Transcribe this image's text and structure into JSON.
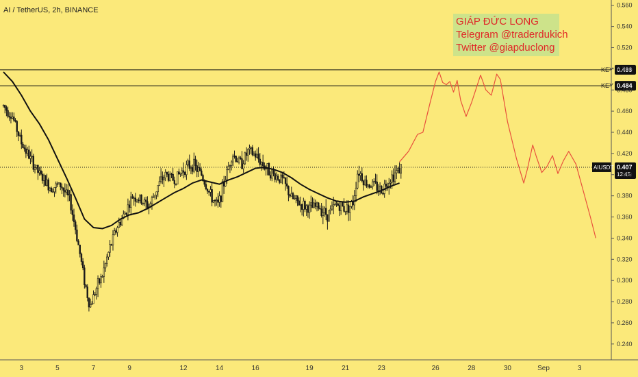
{
  "title": "AI / TetherUS, 2h, BINANCE",
  "watermark": {
    "line1": "GIÁP ĐỨC LONG",
    "line2": "Telegram @traderdukich",
    "line3": "Twitter @giapduclong"
  },
  "colors": {
    "background": "#fbe97a",
    "candle": "#1a1a1a",
    "ma": "#111111",
    "projection": "#e8503c",
    "watermark_text": "#e02828",
    "watermark_bg": "#cde38a",
    "badge": "#111111"
  },
  "chart_data": {
    "type": "line",
    "title": "AI / TetherUS, 2h, BINANCE",
    "xlabel": "",
    "ylabel": "",
    "x_ticks": [
      "3",
      "5",
      "7",
      "9",
      "12",
      "14",
      "16",
      "19",
      "21",
      "23",
      "26",
      "28",
      "30",
      "Sep",
      "3"
    ],
    "y_ticks": [
      "0.240",
      "0.260",
      "0.280",
      "0.300",
      "0.320",
      "0.340",
      "0.360",
      "0.380",
      "0.400",
      "0.420",
      "0.440",
      "0.460",
      "0.480",
      "0.500",
      "0.520",
      "0.540",
      "0.560"
    ],
    "ylim": [
      0.225,
      0.565
    ],
    "grid": false,
    "price_series": [
      {
        "d": 0.0,
        "v": 0.465
      },
      {
        "d": 0.5,
        "v": 0.455
      },
      {
        "d": 1.0,
        "v": 0.43
      },
      {
        "d": 1.5,
        "v": 0.415
      },
      {
        "d": 2.0,
        "v": 0.4
      },
      {
        "d": 2.6,
        "v": 0.388
      },
      {
        "d": 3.2,
        "v": 0.39
      },
      {
        "d": 3.7,
        "v": 0.375
      },
      {
        "d": 4.1,
        "v": 0.34
      },
      {
        "d": 4.5,
        "v": 0.3
      },
      {
        "d": 4.8,
        "v": 0.275
      },
      {
        "d": 5.1,
        "v": 0.29
      },
      {
        "d": 5.5,
        "v": 0.305
      },
      {
        "d": 5.9,
        "v": 0.33
      },
      {
        "d": 6.3,
        "v": 0.35
      },
      {
        "d": 6.7,
        "v": 0.362
      },
      {
        "d": 7.2,
        "v": 0.38
      },
      {
        "d": 7.7,
        "v": 0.375
      },
      {
        "d": 8.1,
        "v": 0.37
      },
      {
        "d": 8.6,
        "v": 0.39
      },
      {
        "d": 9.0,
        "v": 0.4
      },
      {
        "d": 9.5,
        "v": 0.395
      },
      {
        "d": 10.0,
        "v": 0.405
      },
      {
        "d": 10.5,
        "v": 0.41
      },
      {
        "d": 11.0,
        "v": 0.4
      },
      {
        "d": 11.5,
        "v": 0.38
      },
      {
        "d": 11.9,
        "v": 0.37
      },
      {
        "d": 12.3,
        "v": 0.395
      },
      {
        "d": 12.7,
        "v": 0.42
      },
      {
        "d": 13.2,
        "v": 0.41
      },
      {
        "d": 13.6,
        "v": 0.422
      },
      {
        "d": 14.0,
        "v": 0.418
      },
      {
        "d": 14.5,
        "v": 0.408
      },
      {
        "d": 15.0,
        "v": 0.4
      },
      {
        "d": 15.5,
        "v": 0.395
      },
      {
        "d": 16.0,
        "v": 0.378
      },
      {
        "d": 16.5,
        "v": 0.372
      },
      {
        "d": 17.0,
        "v": 0.368
      },
      {
        "d": 17.5,
        "v": 0.37
      },
      {
        "d": 18.0,
        "v": 0.362
      },
      {
        "d": 18.5,
        "v": 0.372
      },
      {
        "d": 19.0,
        "v": 0.368
      },
      {
        "d": 19.4,
        "v": 0.372
      },
      {
        "d": 19.7,
        "v": 0.405
      },
      {
        "d": 20.1,
        "v": 0.392
      },
      {
        "d": 20.6,
        "v": 0.39
      },
      {
        "d": 21.0,
        "v": 0.385
      },
      {
        "d": 21.4,
        "v": 0.395
      },
      {
        "d": 21.8,
        "v": 0.402
      },
      {
        "d": 22.1,
        "v": 0.407
      }
    ],
    "series": [
      {
        "name": "",
        "points": [
          {
            "d": 0.0,
            "v": 0.497
          },
          {
            "d": 0.5,
            "v": 0.488
          },
          {
            "d": 1.0,
            "v": 0.475
          },
          {
            "d": 1.5,
            "v": 0.46
          },
          {
            "d": 2.0,
            "v": 0.448
          },
          {
            "d": 2.5,
            "v": 0.433
          },
          {
            "d": 3.0,
            "v": 0.415
          },
          {
            "d": 3.5,
            "v": 0.397
          },
          {
            "d": 4.0,
            "v": 0.378
          },
          {
            "d": 4.5,
            "v": 0.358
          },
          {
            "d": 5.0,
            "v": 0.35
          },
          {
            "d": 5.5,
            "v": 0.349
          },
          {
            "d": 6.0,
            "v": 0.352
          },
          {
            "d": 6.5,
            "v": 0.358
          },
          {
            "d": 7.0,
            "v": 0.362
          },
          {
            "d": 7.5,
            "v": 0.364
          },
          {
            "d": 8.0,
            "v": 0.368
          },
          {
            "d": 8.5,
            "v": 0.373
          },
          {
            "d": 9.0,
            "v": 0.378
          },
          {
            "d": 9.5,
            "v": 0.383
          },
          {
            "d": 10.0,
            "v": 0.387
          },
          {
            "d": 10.5,
            "v": 0.392
          },
          {
            "d": 11.0,
            "v": 0.395
          },
          {
            "d": 11.5,
            "v": 0.393
          },
          {
            "d": 12.0,
            "v": 0.391
          },
          {
            "d": 12.5,
            "v": 0.395
          },
          {
            "d": 13.0,
            "v": 0.398
          },
          {
            "d": 13.5,
            "v": 0.402
          },
          {
            "d": 14.0,
            "v": 0.406
          },
          {
            "d": 14.5,
            "v": 0.407
          },
          {
            "d": 15.0,
            "v": 0.405
          },
          {
            "d": 15.5,
            "v": 0.402
          },
          {
            "d": 16.0,
            "v": 0.397
          },
          {
            "d": 16.5,
            "v": 0.391
          },
          {
            "d": 17.0,
            "v": 0.386
          },
          {
            "d": 17.5,
            "v": 0.382
          },
          {
            "d": 18.0,
            "v": 0.378
          },
          {
            "d": 18.5,
            "v": 0.375
          },
          {
            "d": 19.0,
            "v": 0.374
          },
          {
            "d": 19.5,
            "v": 0.375
          },
          {
            "d": 20.0,
            "v": 0.379
          },
          {
            "d": 20.5,
            "v": 0.382
          },
          {
            "d": 21.0,
            "v": 0.385
          },
          {
            "d": 21.5,
            "v": 0.389
          },
          {
            "d": 22.0,
            "v": 0.392
          }
        ]
      }
    ],
    "projection": [
      {
        "d": 22.0,
        "v": 0.412
      },
      {
        "d": 22.5,
        "v": 0.422
      },
      {
        "d": 23.0,
        "v": 0.438
      },
      {
        "d": 23.3,
        "v": 0.44
      },
      {
        "d": 23.7,
        "v": 0.468
      },
      {
        "d": 24.0,
        "v": 0.488
      },
      {
        "d": 24.2,
        "v": 0.497
      },
      {
        "d": 24.4,
        "v": 0.487
      },
      {
        "d": 24.6,
        "v": 0.485
      },
      {
        "d": 24.8,
        "v": 0.488
      },
      {
        "d": 25.0,
        "v": 0.478
      },
      {
        "d": 25.2,
        "v": 0.489
      },
      {
        "d": 25.4,
        "v": 0.47
      },
      {
        "d": 25.7,
        "v": 0.455
      },
      {
        "d": 26.0,
        "v": 0.468
      },
      {
        "d": 26.5,
        "v": 0.494
      },
      {
        "d": 26.8,
        "v": 0.48
      },
      {
        "d": 27.1,
        "v": 0.475
      },
      {
        "d": 27.4,
        "v": 0.495
      },
      {
        "d": 27.6,
        "v": 0.49
      },
      {
        "d": 28.0,
        "v": 0.45
      },
      {
        "d": 28.5,
        "v": 0.415
      },
      {
        "d": 28.9,
        "v": 0.392
      },
      {
        "d": 29.1,
        "v": 0.405
      },
      {
        "d": 29.4,
        "v": 0.428
      },
      {
        "d": 29.6,
        "v": 0.417
      },
      {
        "d": 29.9,
        "v": 0.402
      },
      {
        "d": 30.2,
        "v": 0.408
      },
      {
        "d": 30.5,
        "v": 0.418
      },
      {
        "d": 30.8,
        "v": 0.401
      },
      {
        "d": 31.1,
        "v": 0.413
      },
      {
        "d": 31.4,
        "v": 0.422
      },
      {
        "d": 31.8,
        "v": 0.41
      },
      {
        "d": 32.2,
        "v": 0.385
      },
      {
        "d": 32.6,
        "v": 0.36
      },
      {
        "d": 32.9,
        "v": 0.34
      }
    ],
    "levels": [
      {
        "label": "KEY",
        "value": "0.499"
      },
      {
        "label": "KEY",
        "value": "0.484"
      }
    ],
    "current_price": {
      "symbol": "AIUSDT",
      "value": "0.407",
      "countdown": "12:45"
    },
    "annotations": [
      "GIÁP ĐỨC LONG",
      "Telegram @traderdukich",
      "Twitter @giapduclong"
    ]
  }
}
